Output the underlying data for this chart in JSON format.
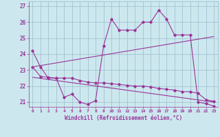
{
  "xlabel": "Windchill (Refroidissement éolien,°C)",
  "background_color": "#cce8ee",
  "line_color": "#993399",
  "grid_color": "#99bbcc",
  "xlim": [
    -0.5,
    23.5
  ],
  "ylim": [
    20.7,
    27.3
  ],
  "yticks": [
    21,
    22,
    23,
    24,
    25,
    26,
    27
  ],
  "xticks": [
    0,
    1,
    2,
    3,
    4,
    5,
    6,
    7,
    8,
    9,
    10,
    11,
    12,
    13,
    14,
    15,
    16,
    17,
    18,
    19,
    20,
    21,
    22,
    23
  ],
  "series1_x": [
    0,
    1,
    2,
    3,
    4,
    5,
    6,
    7,
    8,
    9,
    10,
    11,
    12,
    13,
    14,
    15,
    16,
    17,
    18,
    19,
    20,
    21,
    22,
    23
  ],
  "series1_y": [
    24.2,
    23.2,
    22.5,
    22.5,
    21.3,
    21.5,
    21.0,
    20.85,
    21.1,
    24.5,
    26.2,
    25.5,
    25.5,
    25.5,
    26.0,
    26.0,
    26.75,
    26.2,
    25.2,
    25.2,
    25.2,
    21.0,
    20.9,
    20.75
  ],
  "series2_x": [
    0,
    1,
    2,
    3,
    4,
    5,
    6,
    7,
    8,
    9,
    10,
    11,
    12,
    13,
    14,
    15,
    16,
    17,
    18,
    19,
    20,
    21,
    22,
    23
  ],
  "series2_y": [
    23.2,
    22.6,
    22.55,
    22.5,
    22.5,
    22.5,
    22.35,
    22.25,
    22.2,
    22.2,
    22.15,
    22.1,
    22.05,
    22.0,
    22.0,
    21.95,
    21.85,
    21.8,
    21.75,
    21.65,
    21.65,
    21.55,
    21.15,
    21.05
  ],
  "series3_x": [
    0,
    23
  ],
  "series3_y": [
    23.2,
    25.1
  ],
  "series4_x": [
    0,
    23
  ],
  "series4_y": [
    22.55,
    21.0
  ]
}
